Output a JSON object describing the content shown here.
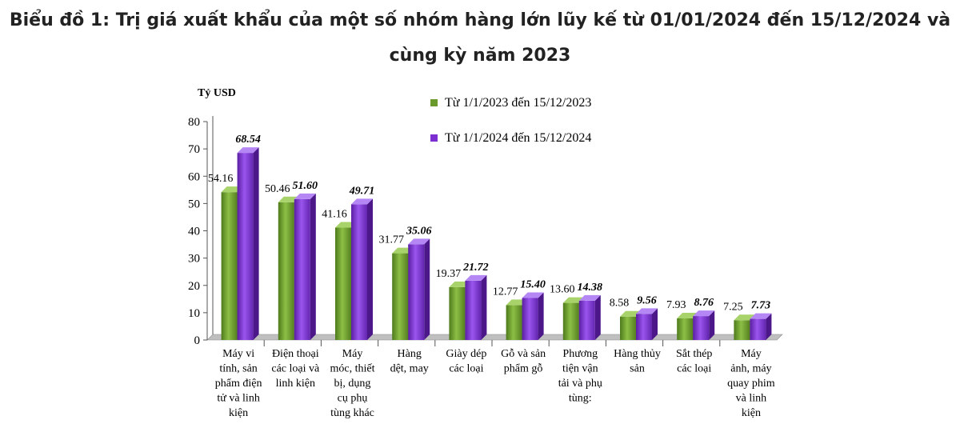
{
  "title_line1": "Biểu đồ 1: Trị giá xuất khẩu của một số nhóm hàng lớn lũy kế từ 01/01/2024 đến 15/12/2024 và",
  "title_line2": "cùng kỳ năm 2023",
  "chart_data": {
    "type": "bar",
    "ylabel": "Tỷ USD",
    "ylim": [
      0,
      80
    ],
    "yticks": [
      0,
      10,
      20,
      30,
      40,
      50,
      60,
      70,
      80
    ],
    "legend_position": "top-right",
    "categories": [
      [
        "Máy vi",
        "tính, sản",
        "phẩm điện",
        "tử và linh",
        "kiện"
      ],
      [
        "Điện thoại",
        "các loại và",
        "linh kiện"
      ],
      [
        "Máy",
        "móc, thiết",
        "bị, dụng",
        "cụ phụ",
        "tùng khác"
      ],
      [
        "Hàng",
        "dệt, may"
      ],
      [
        "Giày dép",
        "các loại"
      ],
      [
        "Gỗ và sản",
        "phẩm gỗ"
      ],
      [
        "Phương",
        "tiện vận",
        "tải và phụ",
        "tùng:"
      ],
      [
        "Hàng thủy",
        "sản"
      ],
      [
        "Sắt thép",
        "các loại"
      ],
      [
        "Máy",
        "ảnh, máy",
        "quay phim",
        "và linh",
        "kiện"
      ]
    ],
    "series": [
      {
        "name": "Từ 1/1/2023 đến 15/12/2023",
        "color": "#6a9a2c",
        "values": [
          54.16,
          50.46,
          41.16,
          31.77,
          19.37,
          12.77,
          13.6,
          8.58,
          7.93,
          7.25
        ],
        "labels": [
          "54.16",
          "50.46",
          "41.16",
          "31.77",
          "19.37",
          "12.77",
          "13.60",
          "8.58",
          "7.93",
          "7.25"
        ]
      },
      {
        "name": "Từ 1/1/2024 đến 15/12/2024",
        "color": "#7b2fd0",
        "values": [
          68.54,
          51.6,
          49.71,
          35.06,
          21.72,
          15.4,
          14.38,
          9.56,
          8.76,
          7.73
        ],
        "labels": [
          "68.54",
          "51.60",
          "49.71",
          "35.06",
          "21.72",
          "15.40",
          "14.38",
          "9.56",
          "8.76",
          "7.73"
        ]
      }
    ]
  }
}
